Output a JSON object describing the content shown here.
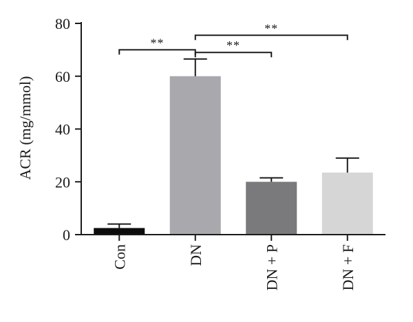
{
  "chart_data": {
    "type": "bar",
    "categories": [
      "Con",
      "DN",
      "DN + P",
      "DN + F"
    ],
    "values": [
      2.5,
      60,
      20,
      23.5
    ],
    "errors": [
      1.5,
      6.5,
      1.5,
      5.5
    ],
    "bar_colors": [
      "#0d0d0d",
      "#a8a8ad",
      "#7a7a7c",
      "#d6d6d6"
    ],
    "ylabel": "ACR (mg/mmol)",
    "ylim": [
      0,
      80
    ],
    "yticks": [
      0,
      20,
      40,
      60,
      80
    ],
    "significance": [
      {
        "from": 0,
        "to": 1,
        "label": "**",
        "y": 70
      },
      {
        "from": 1,
        "to": 2,
        "label": "**",
        "y": 69
      },
      {
        "from": 1,
        "to": 3,
        "label": "**",
        "y": 75.5
      }
    ]
  }
}
